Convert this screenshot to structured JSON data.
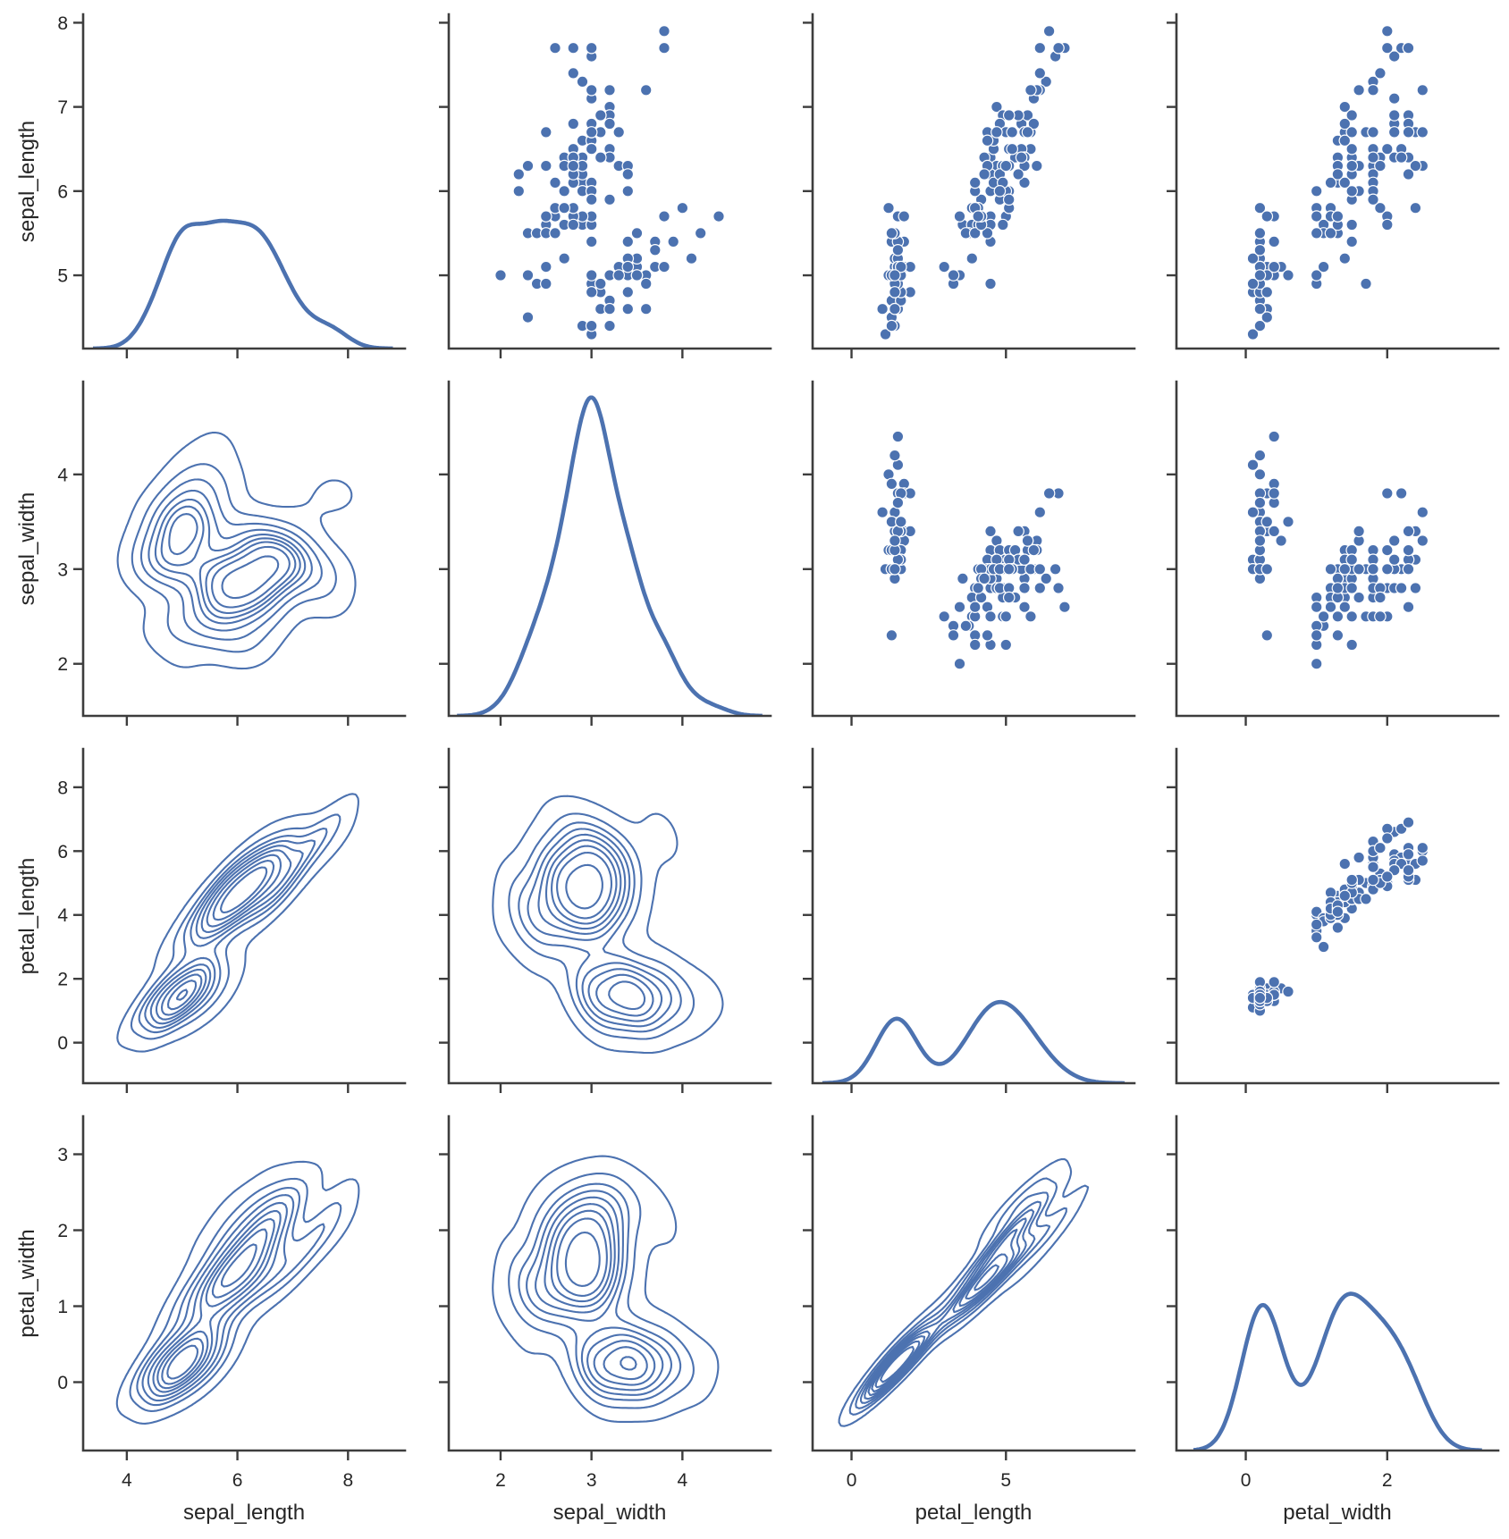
{
  "chart_data": {
    "type": "pairgrid",
    "variables": [
      "sepal_length",
      "sepal_width",
      "petal_length",
      "petal_width"
    ],
    "layout": {
      "upper": "scatter",
      "lower": "kde-contour",
      "diag": "kde-line"
    },
    "color": "#4c72b0",
    "marker_edge_color": "#ffffff",
    "grid": false,
    "despine": true,
    "xlim": [
      [
        3.21,
        9.03
      ],
      [
        1.43,
        4.97
      ],
      [
        -1.26,
        9.16
      ],
      [
        -0.98,
        3.57
      ]
    ],
    "ylim": [
      [
        4.13,
        8.1
      ],
      [
        1.45,
        4.98
      ],
      [
        -1.27,
        9.2
      ],
      [
        -0.9,
        3.5
      ]
    ],
    "x_ticks": [
      [
        "4",
        "6",
        "8"
      ],
      [
        "2",
        "3",
        "4"
      ],
      [
        "0",
        "5"
      ],
      [
        "0",
        "2"
      ]
    ],
    "y_ticks": [
      [
        "5",
        "6",
        "7",
        "8"
      ],
      [
        "2",
        "3",
        "4"
      ],
      [
        "0",
        "2",
        "4",
        "6",
        "8"
      ],
      [
        "0",
        "1",
        "2",
        "3"
      ]
    ],
    "contour_levels": 10,
    "data": {
      "sepal_length": [
        5.1,
        4.9,
        4.7,
        4.6,
        5.0,
        5.4,
        4.6,
        5.0,
        4.4,
        4.9,
        5.4,
        4.8,
        4.8,
        4.3,
        5.8,
        5.7,
        5.4,
        5.1,
        5.7,
        5.1,
        5.4,
        5.1,
        4.6,
        5.1,
        4.8,
        5.0,
        5.0,
        5.2,
        5.2,
        4.7,
        4.8,
        5.4,
        5.2,
        5.5,
        4.9,
        5.0,
        5.5,
        4.9,
        4.4,
        5.1,
        5.0,
        4.5,
        4.4,
        5.0,
        5.1,
        4.8,
        5.1,
        4.6,
        5.3,
        5.0,
        7.0,
        6.4,
        6.9,
        5.5,
        6.5,
        5.7,
        6.3,
        4.9,
        6.6,
        5.2,
        5.0,
        5.9,
        6.0,
        6.1,
        5.6,
        6.7,
        5.6,
        5.8,
        6.2,
        5.6,
        5.9,
        6.1,
        6.3,
        6.1,
        6.4,
        6.6,
        6.8,
        6.7,
        6.0,
        5.7,
        5.5,
        5.5,
        5.8,
        6.0,
        5.4,
        6.0,
        6.7,
        6.3,
        5.6,
        5.5,
        5.5,
        6.1,
        5.8,
        5.0,
        5.6,
        5.7,
        5.7,
        6.2,
        5.1,
        5.7,
        6.3,
        5.8,
        7.1,
        6.3,
        6.5,
        7.6,
        4.9,
        7.3,
        6.7,
        7.2,
        6.5,
        6.4,
        6.8,
        5.7,
        5.8,
        6.4,
        6.5,
        7.7,
        7.7,
        6.0,
        6.9,
        5.6,
        7.7,
        6.3,
        6.7,
        7.2,
        6.2,
        6.1,
        6.4,
        7.2,
        7.4,
        7.9,
        6.4,
        6.3,
        6.1,
        7.7,
        6.3,
        6.4,
        6.0,
        6.9,
        6.7,
        6.9,
        5.8,
        6.8,
        6.7,
        6.7,
        6.3,
        6.5,
        6.2,
        5.9
      ],
      "sepal_width": [
        3.5,
        3.0,
        3.2,
        3.1,
        3.6,
        3.9,
        3.4,
        3.4,
        2.9,
        3.1,
        3.7,
        3.4,
        3.0,
        3.0,
        4.0,
        4.4,
        3.9,
        3.5,
        3.8,
        3.8,
        3.4,
        3.7,
        3.6,
        3.3,
        3.4,
        3.0,
        3.4,
        3.5,
        3.4,
        3.2,
        3.1,
        3.4,
        4.1,
        4.2,
        3.1,
        3.2,
        3.5,
        3.6,
        3.0,
        3.4,
        3.5,
        2.3,
        3.2,
        3.5,
        3.8,
        3.0,
        3.8,
        3.2,
        3.7,
        3.3,
        3.2,
        3.2,
        3.1,
        2.3,
        2.8,
        2.8,
        3.3,
        2.4,
        2.9,
        2.7,
        2.0,
        3.0,
        2.2,
        2.9,
        2.9,
        3.1,
        3.0,
        2.7,
        2.2,
        2.5,
        3.2,
        2.8,
        2.5,
        2.8,
        2.9,
        3.0,
        2.8,
        3.0,
        2.9,
        2.6,
        2.4,
        2.4,
        2.7,
        2.7,
        3.0,
        3.4,
        3.1,
        2.3,
        3.0,
        2.5,
        2.6,
        3.0,
        2.6,
        2.3,
        2.7,
        3.0,
        2.9,
        2.9,
        2.5,
        2.8,
        3.3,
        2.7,
        3.0,
        2.9,
        3.0,
        3.0,
        2.5,
        2.9,
        2.5,
        3.6,
        3.2,
        2.7,
        3.0,
        2.5,
        2.8,
        3.2,
        3.0,
        3.8,
        2.6,
        2.2,
        3.2,
        2.8,
        2.8,
        2.7,
        3.3,
        3.2,
        2.8,
        3.0,
        2.8,
        3.0,
        2.8,
        3.8,
        2.8,
        2.8,
        2.6,
        3.0,
        3.4,
        3.1,
        3.0,
        3.1,
        3.1,
        3.1,
        2.7,
        3.2,
        3.3,
        3.0,
        2.5,
        3.0,
        3.4,
        3.0
      ],
      "petal_length": [
        1.4,
        1.4,
        1.3,
        1.5,
        1.4,
        1.7,
        1.4,
        1.5,
        1.4,
        1.5,
        1.5,
        1.6,
        1.4,
        1.1,
        1.2,
        1.5,
        1.3,
        1.4,
        1.7,
        1.5,
        1.7,
        1.5,
        1.0,
        1.7,
        1.9,
        1.6,
        1.6,
        1.5,
        1.4,
        1.6,
        1.6,
        1.5,
        1.5,
        1.4,
        1.5,
        1.2,
        1.3,
        1.4,
        1.3,
        1.5,
        1.3,
        1.3,
        1.3,
        1.6,
        1.9,
        1.4,
        1.6,
        1.4,
        1.5,
        1.4,
        4.7,
        4.5,
        4.9,
        4.0,
        4.6,
        4.5,
        4.7,
        3.3,
        4.6,
        3.9,
        3.5,
        4.2,
        4.0,
        4.7,
        3.6,
        4.4,
        4.5,
        4.1,
        4.5,
        3.9,
        4.8,
        4.0,
        4.9,
        4.7,
        4.3,
        4.4,
        4.8,
        5.0,
        4.5,
        3.5,
        3.8,
        3.7,
        3.9,
        5.1,
        4.5,
        4.5,
        4.7,
        4.4,
        4.1,
        4.0,
        4.4,
        4.6,
        4.0,
        3.3,
        4.2,
        4.2,
        4.2,
        4.3,
        3.0,
        4.1,
        6.0,
        5.1,
        5.9,
        5.6,
        5.8,
        6.6,
        4.5,
        6.3,
        5.8,
        6.1,
        5.1,
        5.3,
        5.5,
        5.0,
        5.1,
        5.3,
        5.5,
        6.7,
        6.9,
        5.0,
        5.7,
        4.9,
        6.7,
        4.9,
        5.7,
        6.0,
        4.8,
        4.9,
        5.6,
        5.8,
        6.1,
        6.4,
        5.6,
        5.1,
        5.6,
        6.1,
        5.6,
        5.5,
        4.8,
        5.4,
        5.6,
        5.1,
        5.1,
        5.9,
        5.7,
        5.2,
        5.0,
        5.2,
        5.4,
        5.1
      ],
      "petal_width": [
        0.2,
        0.2,
        0.2,
        0.2,
        0.2,
        0.4,
        0.3,
        0.2,
        0.2,
        0.1,
        0.2,
        0.2,
        0.1,
        0.1,
        0.2,
        0.4,
        0.4,
        0.3,
        0.3,
        0.3,
        0.2,
        0.4,
        0.2,
        0.5,
        0.2,
        0.2,
        0.4,
        0.2,
        0.2,
        0.2,
        0.2,
        0.4,
        0.1,
        0.2,
        0.2,
        0.2,
        0.2,
        0.1,
        0.2,
        0.2,
        0.3,
        0.3,
        0.2,
        0.6,
        0.4,
        0.3,
        0.2,
        0.2,
        0.2,
        0.2,
        1.4,
        1.5,
        1.5,
        1.3,
        1.5,
        1.3,
        1.6,
        1.0,
        1.3,
        1.4,
        1.0,
        1.5,
        1.0,
        1.4,
        1.3,
        1.4,
        1.5,
        1.0,
        1.5,
        1.1,
        1.8,
        1.3,
        1.5,
        1.2,
        1.3,
        1.4,
        1.4,
        1.7,
        1.5,
        1.0,
        1.1,
        1.0,
        1.2,
        1.6,
        1.5,
        1.6,
        1.5,
        1.3,
        1.3,
        1.3,
        1.2,
        1.4,
        1.2,
        1.0,
        1.3,
        1.2,
        1.3,
        1.3,
        1.1,
        1.3,
        2.5,
        1.9,
        2.1,
        1.8,
        2.2,
        2.1,
        1.7,
        1.8,
        1.8,
        2.5,
        2.0,
        1.9,
        2.1,
        2.0,
        2.4,
        2.3,
        1.8,
        2.2,
        2.3,
        1.5,
        2.3,
        2.0,
        2.0,
        1.8,
        2.1,
        1.8,
        1.8,
        1.8,
        2.1,
        1.6,
        1.9,
        2.0,
        2.2,
        1.5,
        1.4,
        2.3,
        2.4,
        1.8,
        1.8,
        2.1,
        2.4,
        2.3,
        1.9,
        2.3,
        2.5,
        2.3,
        1.9,
        2.0,
        2.3,
        1.8
      ]
    }
  }
}
